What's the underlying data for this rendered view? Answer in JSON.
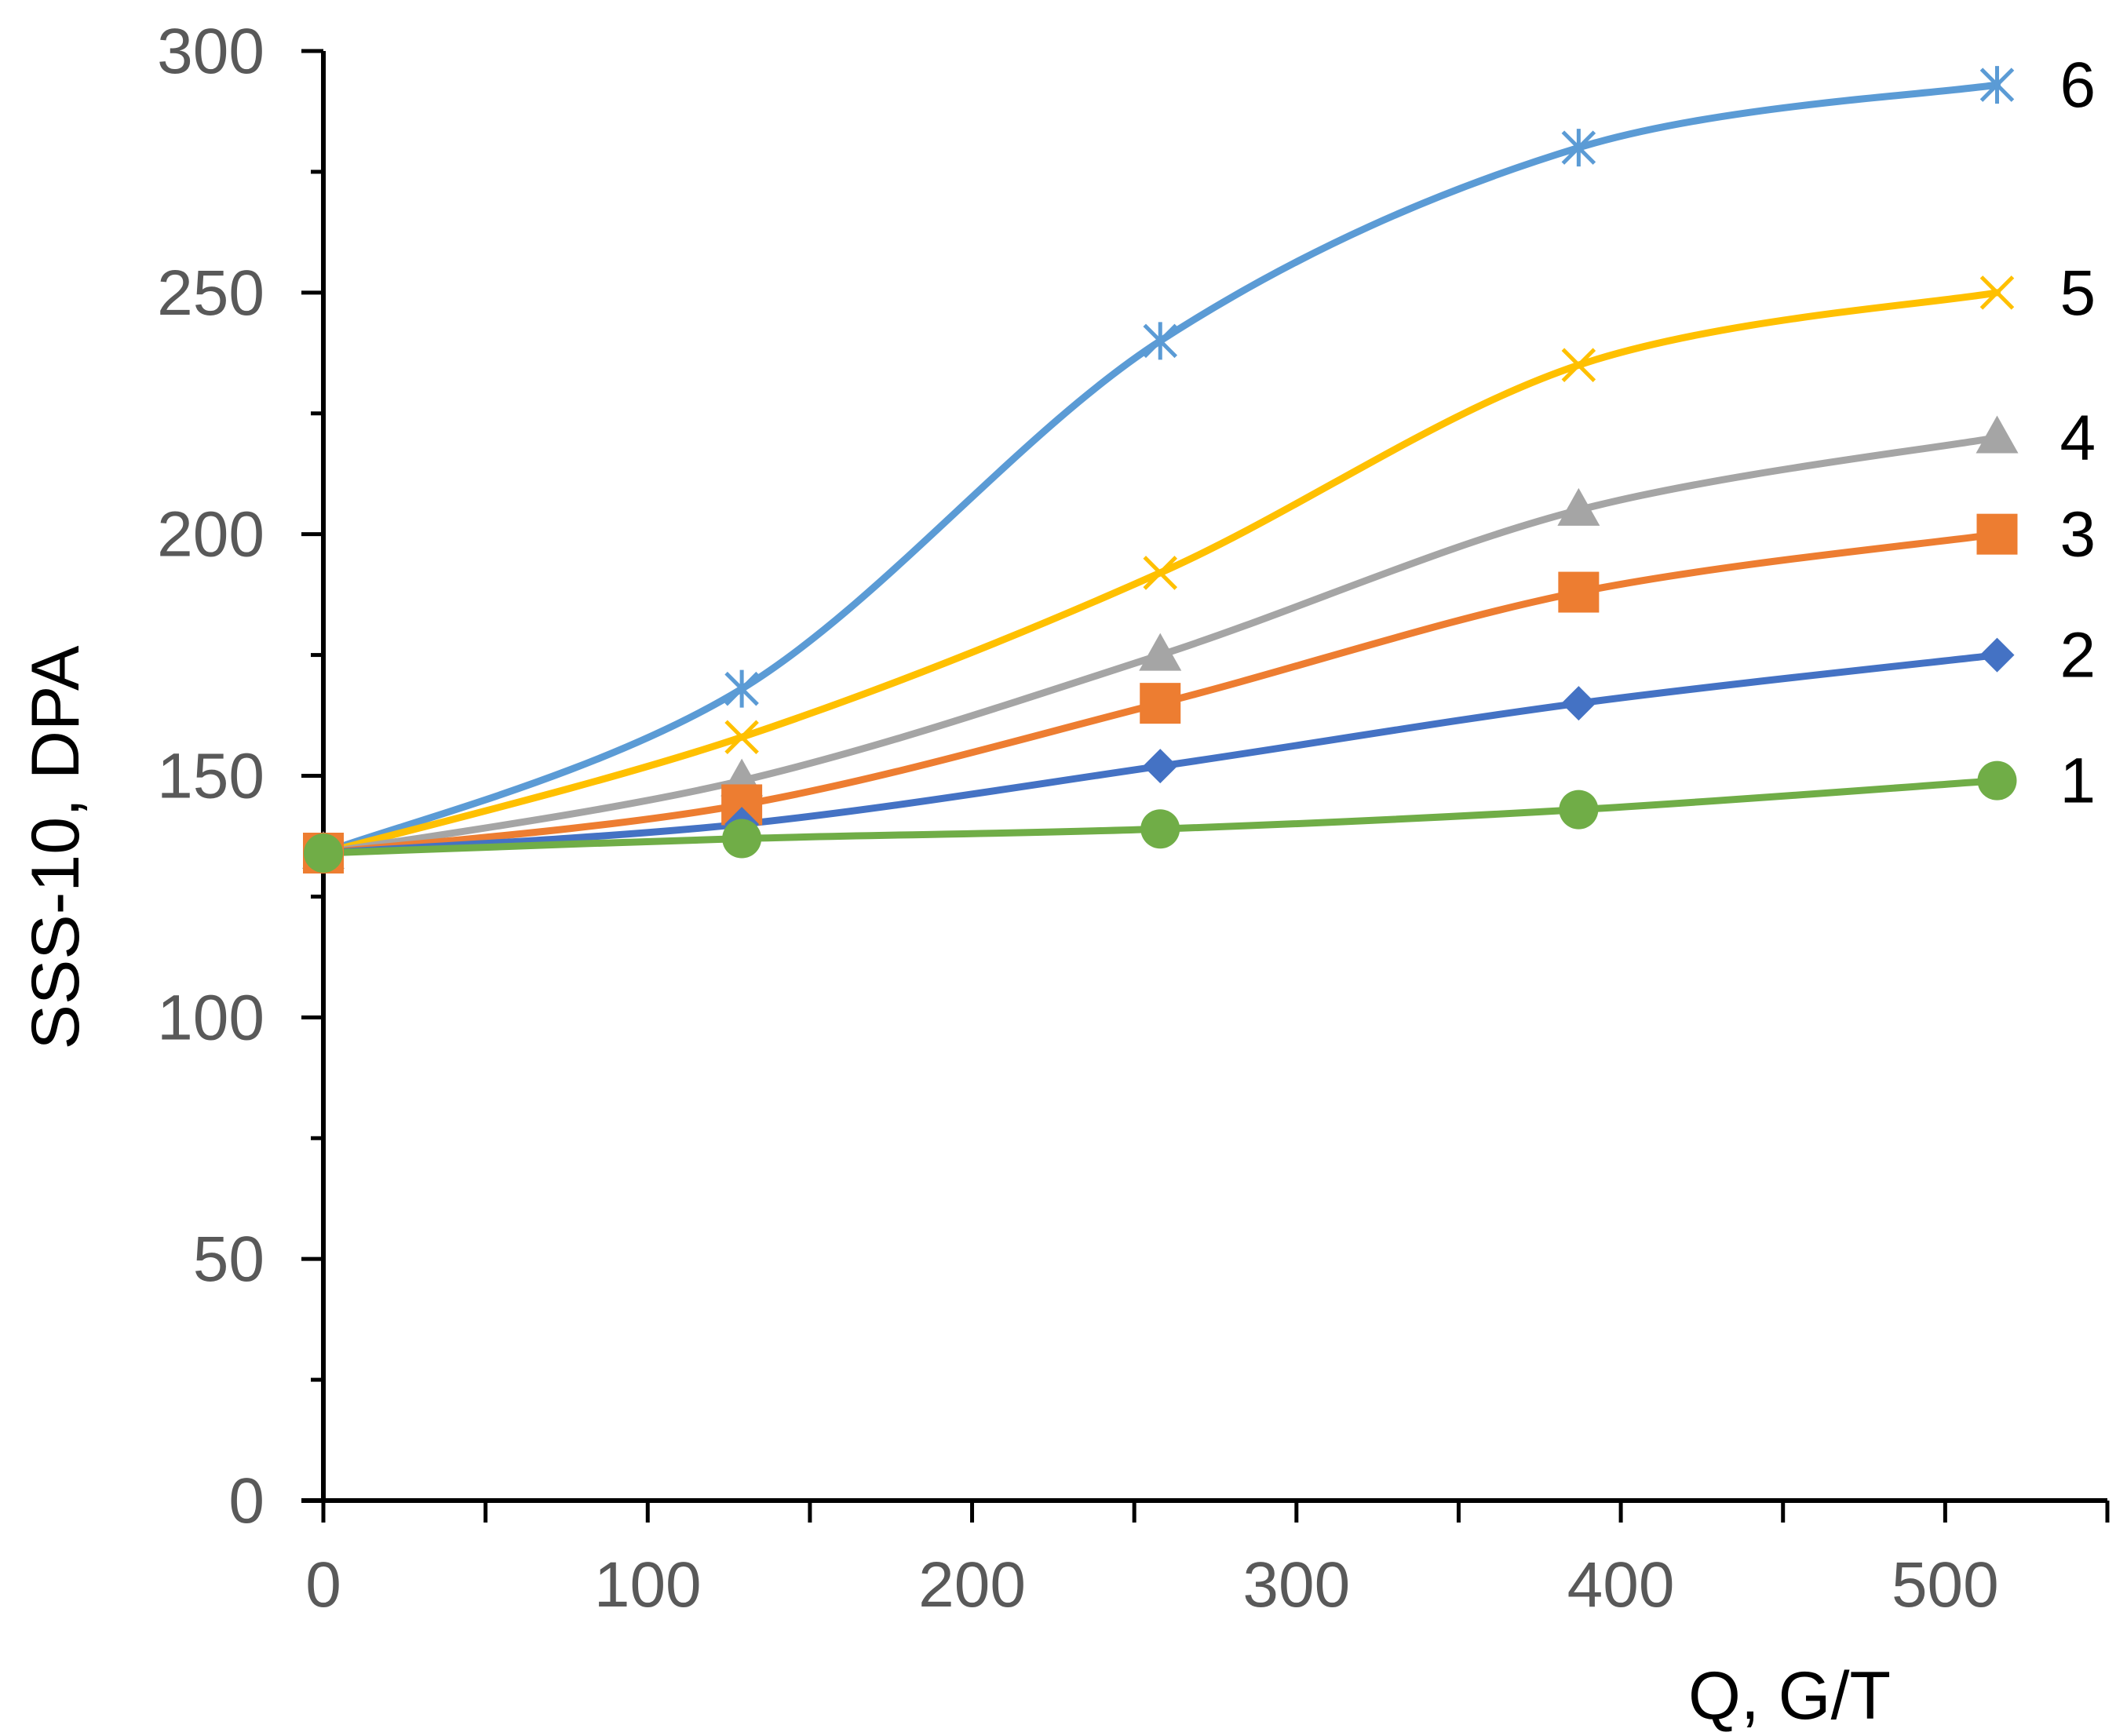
{
  "chart_data": {
    "type": "line",
    "title": "",
    "xlabel": "Q, G/T",
    "ylabel": "SSS-10, DPA",
    "xlim": [
      0,
      550
    ],
    "ylim": [
      0,
      300
    ],
    "x_ticks": [
      0,
      100,
      200,
      300,
      400,
      500
    ],
    "x_minor_ticks": [
      50,
      150,
      250,
      350,
      450,
      550
    ],
    "y_ticks": [
      0,
      50,
      100,
      150,
      200,
      250,
      300
    ],
    "y_minor_ticks": [
      25,
      75,
      125,
      175,
      225,
      275
    ],
    "grid": false,
    "smooth": true,
    "x": [
      0,
      129,
      258,
      387,
      516
    ],
    "series": [
      {
        "name": "1",
        "label": "1",
        "color": "#70AD47",
        "marker": "circle",
        "values": [
          134,
          137,
          139,
          143,
          149
        ]
      },
      {
        "name": "2",
        "label": "2",
        "color": "#4472C4",
        "marker": "diamond",
        "values": [
          134,
          140,
          152,
          165,
          175
        ]
      },
      {
        "name": "3",
        "label": "3",
        "color": "#ED7D31",
        "marker": "square",
        "values": [
          134,
          144,
          165,
          188,
          200
        ]
      },
      {
        "name": "4",
        "label": "4",
        "color": "#A5A5A5",
        "marker": "triangle",
        "values": [
          134,
          149,
          175,
          205,
          220
        ]
      },
      {
        "name": "5",
        "label": "5",
        "color": "#FFC000",
        "marker": "x",
        "values": [
          134,
          158,
          192,
          235,
          250
        ]
      },
      {
        "name": "6",
        "label": "6",
        "color": "#5B9BD5",
        "marker": "star",
        "values": [
          134,
          168,
          240,
          280,
          293
        ]
      }
    ]
  }
}
